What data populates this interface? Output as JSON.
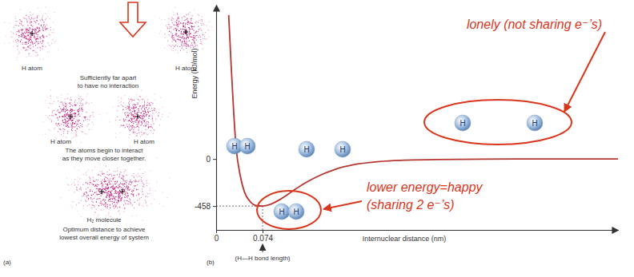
{
  "chart_data": {
    "type": "line",
    "x": [
      0.02,
      0.024,
      0.028,
      0.032,
      0.038,
      0.045,
      0.055,
      0.065,
      0.074,
      0.085,
      0.1,
      0.12,
      0.14,
      0.165,
      0.19,
      0.22,
      0.26,
      0.3,
      0.35,
      0.42,
      0.5,
      0.64
    ],
    "values": [
      1400,
      900,
      450,
      100,
      -150,
      -320,
      -420,
      -455,
      -458,
      -445,
      -400,
      -320,
      -240,
      -160,
      -100,
      -55,
      -25,
      -12,
      -5,
      -2,
      0,
      0
    ],
    "color": "#b5372f",
    "xlim": [
      0,
      0.64
    ],
    "ylim": [
      -690,
      1500
    ],
    "xticks": [
      0,
      0.074
    ],
    "yticks": [
      -458,
      0
    ],
    "x_label": "Internuclear distance (nm)",
    "y_label": "Energy (kJ/mol)",
    "panel_label": "(b)",
    "annotations": {
      "xtick_note": "(H—H bond length)",
      "lonely": "lonely (not sharing e⁻’s)",
      "happy": [
        "lower energy=happy",
        "(sharing 2 e⁻’s)"
      ]
    },
    "molecules": [
      [
        "H",
        "H"
      ],
      [
        "H",
        "H"
      ],
      [
        "H",
        "H"
      ],
      [
        "H",
        "H"
      ]
    ]
  },
  "diagram": {
    "panel_label": "(a)",
    "stages": [
      {
        "atoms": [
          "H atom",
          "H atom"
        ],
        "caption": [
          "Sufficiently far apart",
          "to have no interaction"
        ]
      },
      {
        "atoms": [
          "H atom",
          "H atom"
        ],
        "caption": [
          "The atoms begin to interact",
          "as they move closer together."
        ]
      },
      {
        "atoms": [
          "H₂ molecule"
        ],
        "caption": [
          "Optimum distance to achieve",
          "lowest overall energy of system"
        ]
      }
    ]
  }
}
